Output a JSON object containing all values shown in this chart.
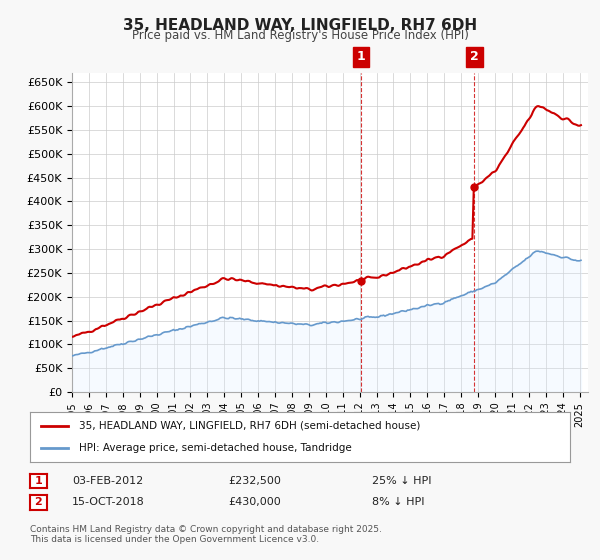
{
  "title": "35, HEADLAND WAY, LINGFIELD, RH7 6DH",
  "subtitle": "Price paid vs. HM Land Registry's House Price Index (HPI)",
  "ylabel_ticks": [
    "£0",
    "£50K",
    "£100K",
    "£150K",
    "£200K",
    "£250K",
    "£300K",
    "£350K",
    "£400K",
    "£450K",
    "£500K",
    "£550K",
    "£600K",
    "£650K"
  ],
  "ytick_values": [
    0,
    50000,
    100000,
    150000,
    200000,
    250000,
    300000,
    350000,
    400000,
    450000,
    500000,
    550000,
    600000,
    650000
  ],
  "ylim": [
    0,
    670000
  ],
  "xlim_start": 1995.0,
  "xlim_end": 2025.5,
  "sale1_year": 2012.08,
  "sale1_price": 232500,
  "sale2_year": 2018.79,
  "sale2_price": 430000,
  "legend_line1": "35, HEADLAND WAY, LINGFIELD, RH7 6DH (semi-detached house)",
  "legend_line2": "HPI: Average price, semi-detached house, Tandridge",
  "footnote1": "Contains HM Land Registry data © Crown copyright and database right 2025.",
  "footnote2": "This data is licensed under the Open Government Licence v3.0.",
  "property_color": "#cc0000",
  "hpi_color": "#6699cc",
  "hpi_fill_color": "#ddeeff",
  "plot_bg_color": "#ffffff",
  "vline_color": "#cc0000",
  "annotation_box_color": "#cc0000",
  "table_row1": [
    "03-FEB-2012",
    "£232,500",
    "25% ↓ HPI"
  ],
  "table_row2": [
    "15-OCT-2018",
    "£430,000",
    "8% ↓ HPI"
  ]
}
